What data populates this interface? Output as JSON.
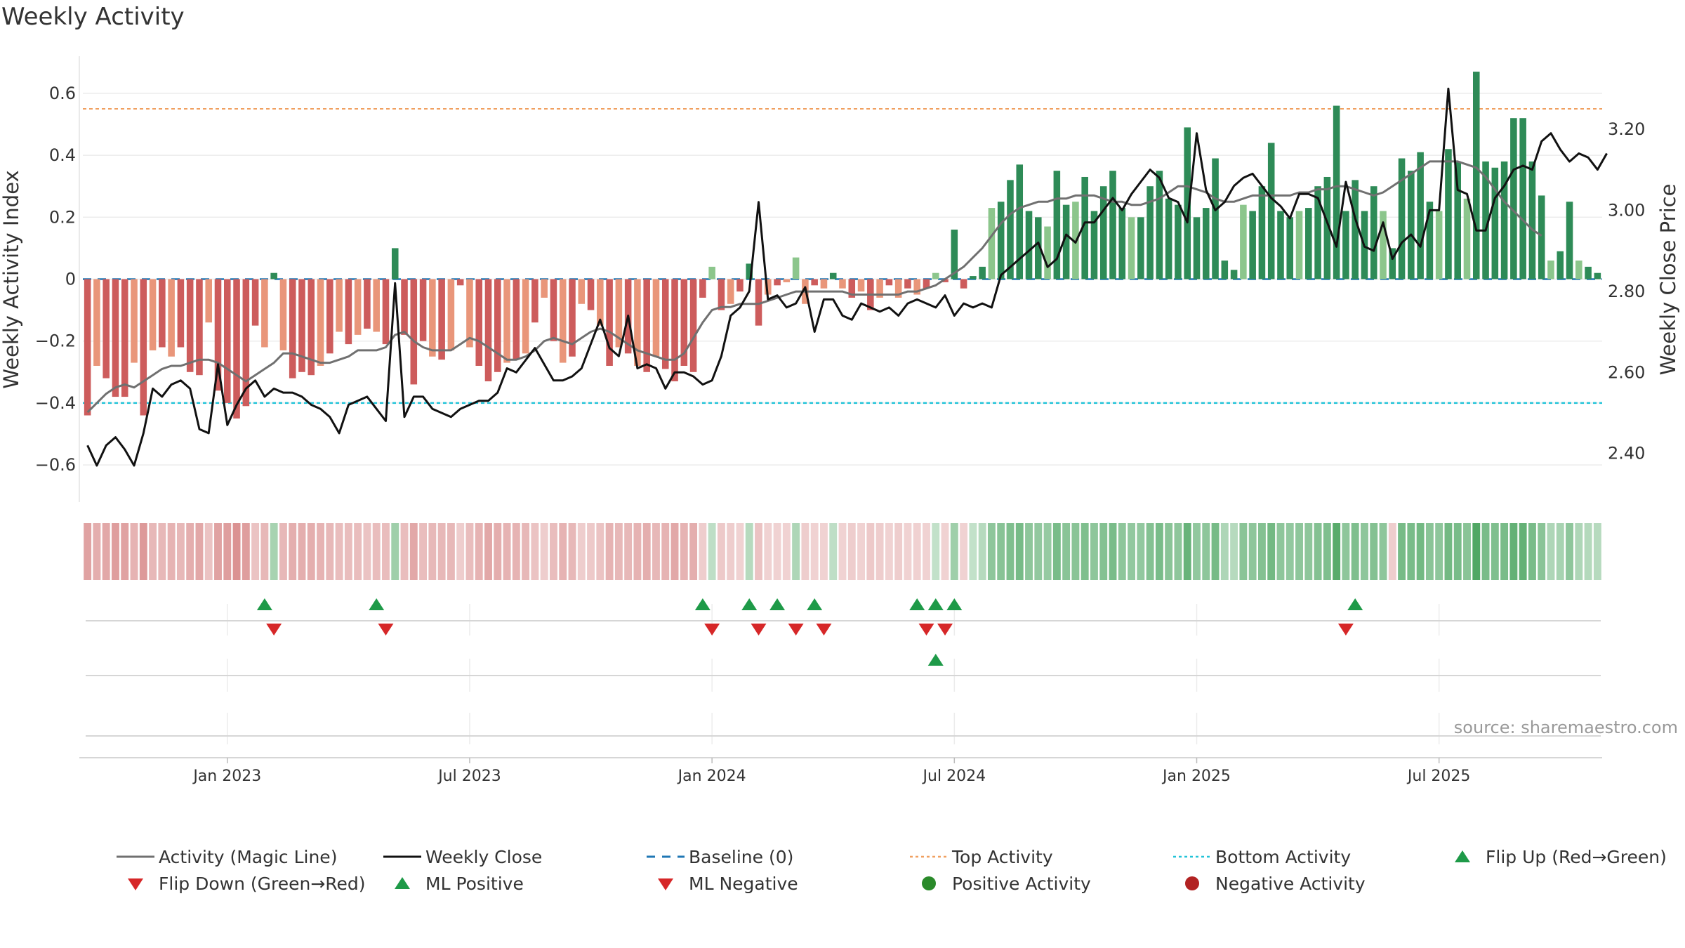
{
  "chart_data": {
    "type": "bar",
    "title": "Weekly Activity",
    "ylabel_left": "Weekly Activity Index",
    "ylabel_right": "Weekly Close Price",
    "source": "source: sharemaestro.com",
    "ylim_left": [
      -0.72,
      0.72
    ],
    "ylim_right": [
      2.28,
      3.38
    ],
    "yticks_left": [
      "0.6",
      "0.4",
      "0.2",
      "0",
      "−0.2",
      "−0.4",
      "−0.6"
    ],
    "yticks_left_values": [
      0.6,
      0.4,
      0.2,
      0,
      -0.2,
      -0.4,
      -0.6
    ],
    "yticks_right": [
      "3.20",
      "3.00",
      "2.80",
      "2.60",
      "2.40"
    ],
    "yticks_right_values": [
      3.2,
      3.0,
      2.8,
      2.6,
      2.4
    ],
    "xticks": [
      "Jan 2023",
      "Jul 2023",
      "Jan 2024",
      "Jul 2024",
      "Jan 2025",
      "Jul 2025"
    ],
    "xticks_weeks": [
      15,
      41,
      67,
      93,
      119,
      145
    ],
    "top_activity": 0.55,
    "bottom_activity": -0.4,
    "colors": {
      "strong_pos": "#2e8b57",
      "weak_pos": "#8cc68c",
      "strong_neg": "#cd5c5c",
      "weak_neg": "#e9967a",
      "magic_line": "#707070",
      "close": "#111111",
      "baseline": "#1f77b4",
      "top": "#f0a060",
      "bottom": "#22c3d8",
      "up_marker": "#1e9a48",
      "down_marker": "#d62728",
      "pos_dot": "#2a8a2a",
      "neg_dot": "#b22222"
    },
    "activity": [
      -0.44,
      -0.28,
      -0.32,
      -0.38,
      -0.38,
      -0.27,
      -0.44,
      -0.23,
      -0.22,
      -0.25,
      -0.22,
      -0.3,
      -0.31,
      -0.14,
      -0.36,
      -0.4,
      -0.45,
      -0.41,
      -0.15,
      -0.22,
      0.02,
      -0.23,
      -0.32,
      -0.3,
      -0.31,
      -0.28,
      -0.24,
      -0.17,
      -0.21,
      -0.18,
      -0.16,
      -0.17,
      -0.21,
      0.1,
      -0.18,
      -0.34,
      -0.2,
      -0.25,
      -0.26,
      -0.23,
      -0.02,
      -0.22,
      -0.28,
      -0.33,
      -0.3,
      -0.27,
      -0.26,
      -0.24,
      -0.14,
      -0.06,
      -0.2,
      -0.27,
      -0.25,
      -0.08,
      -0.1,
      -0.15,
      -0.28,
      -0.22,
      -0.24,
      -0.28,
      -0.3,
      -0.25,
      -0.29,
      -0.33,
      -0.28,
      -0.3,
      -0.06,
      0.04,
      -0.1,
      -0.08,
      -0.04,
      0.05,
      -0.15,
      -0.05,
      -0.02,
      -0.01,
      0.07,
      -0.08,
      -0.02,
      -0.03,
      0.02,
      -0.03,
      -0.06,
      -0.04,
      -0.1,
      -0.06,
      -0.02,
      -0.06,
      -0.03,
      -0.05,
      -0.03,
      0.02,
      -0.01,
      0.16,
      -0.03,
      0.01,
      0.04,
      0.23,
      0.25,
      0.32,
      0.37,
      0.22,
      0.2,
      0.17,
      0.35,
      0.24,
      0.25,
      0.33,
      0.22,
      0.3,
      0.35,
      0.23,
      0.2,
      0.2,
      0.3,
      0.35,
      0.26,
      0.24,
      0.49,
      0.2,
      0.23,
      0.39,
      0.06,
      0.03,
      0.24,
      0.22,
      0.3,
      0.44,
      0.22,
      0.2,
      0.22,
      0.23,
      0.3,
      0.33,
      0.56,
      0.22,
      0.32,
      0.22,
      0.3,
      0.22,
      0.1,
      0.39,
      0.35,
      0.41,
      0.25,
      0.22,
      0.42,
      0.38,
      0.26,
      0.67,
      0.38,
      0.36,
      0.38,
      0.52,
      0.52,
      0.38,
      0.27,
      0.06,
      0.09,
      0.25,
      0.06,
      0.04,
      0.02
    ],
    "magic_line": [
      -0.43,
      -0.4,
      -0.37,
      -0.35,
      -0.34,
      -0.35,
      -0.33,
      -0.31,
      -0.29,
      -0.28,
      -0.28,
      -0.27,
      -0.26,
      -0.26,
      -0.27,
      -0.29,
      -0.31,
      -0.33,
      -0.31,
      -0.29,
      -0.27,
      -0.24,
      -0.24,
      -0.25,
      -0.26,
      -0.27,
      -0.27,
      -0.26,
      -0.25,
      -0.23,
      -0.23,
      -0.23,
      -0.22,
      -0.18,
      -0.17,
      -0.2,
      -0.22,
      -0.23,
      -0.23,
      -0.23,
      -0.21,
      -0.19,
      -0.2,
      -0.22,
      -0.24,
      -0.26,
      -0.26,
      -0.25,
      -0.23,
      -0.2,
      -0.19,
      -0.2,
      -0.21,
      -0.19,
      -0.17,
      -0.16,
      -0.17,
      -0.19,
      -0.21,
      -0.23,
      -0.24,
      -0.25,
      -0.26,
      -0.26,
      -0.24,
      -0.19,
      -0.14,
      -0.1,
      -0.09,
      -0.09,
      -0.08,
      -0.08,
      -0.08,
      -0.07,
      -0.06,
      -0.05,
      -0.04,
      -0.04,
      -0.04,
      -0.04,
      -0.04,
      -0.04,
      -0.05,
      -0.05,
      -0.05,
      -0.05,
      -0.05,
      -0.05,
      -0.04,
      -0.04,
      -0.03,
      -0.02,
      0.0,
      0.02,
      0.04,
      0.07,
      0.1,
      0.14,
      0.18,
      0.21,
      0.23,
      0.24,
      0.25,
      0.25,
      0.26,
      0.26,
      0.27,
      0.27,
      0.27,
      0.26,
      0.25,
      0.25,
      0.24,
      0.24,
      0.25,
      0.26,
      0.28,
      0.3,
      0.3,
      0.29,
      0.28,
      0.26,
      0.25,
      0.25,
      0.26,
      0.27,
      0.27,
      0.27,
      0.27,
      0.27,
      0.28,
      0.28,
      0.29,
      0.29,
      0.3,
      0.3,
      0.29,
      0.28,
      0.27,
      0.28,
      0.3,
      0.32,
      0.34,
      0.36,
      0.38,
      0.38,
      0.38,
      0.38,
      0.37,
      0.36,
      0.33,
      0.29,
      0.25,
      0.22,
      0.19,
      0.16,
      0.14
    ],
    "close": [
      2.42,
      2.37,
      2.42,
      2.44,
      2.41,
      2.37,
      2.45,
      2.56,
      2.54,
      2.57,
      2.58,
      2.56,
      2.46,
      2.45,
      2.62,
      2.47,
      2.52,
      2.56,
      2.58,
      2.54,
      2.56,
      2.55,
      2.55,
      2.54,
      2.52,
      2.51,
      2.49,
      2.45,
      2.52,
      2.53,
      2.54,
      2.51,
      2.48,
      2.82,
      2.49,
      2.54,
      2.54,
      2.51,
      2.5,
      2.49,
      2.51,
      2.52,
      2.53,
      2.53,
      2.55,
      2.61,
      2.6,
      2.63,
      2.66,
      2.62,
      2.58,
      2.58,
      2.59,
      2.61,
      2.67,
      2.73,
      2.66,
      2.64,
      2.74,
      2.61,
      2.62,
      2.61,
      2.56,
      2.6,
      2.6,
      2.59,
      2.57,
      2.58,
      2.64,
      2.74,
      2.76,
      2.8,
      3.02,
      2.78,
      2.79,
      2.76,
      2.77,
      2.81,
      2.7,
      2.78,
      2.78,
      2.74,
      2.73,
      2.77,
      2.76,
      2.75,
      2.76,
      2.74,
      2.77,
      2.78,
      2.77,
      2.76,
      2.79,
      2.74,
      2.77,
      2.76,
      2.77,
      2.76,
      2.84,
      2.86,
      2.88,
      2.9,
      2.92,
      2.86,
      2.88,
      2.94,
      2.92,
      2.97,
      2.97,
      3.0,
      3.03,
      3.0,
      3.04,
      3.07,
      3.1,
      3.08,
      3.03,
      3.02,
      2.97,
      3.19,
      3.05,
      3.0,
      3.02,
      3.06,
      3.08,
      3.09,
      3.06,
      3.03,
      3.01,
      2.98,
      3.04,
      3.04,
      3.03,
      2.97,
      2.91,
      3.07,
      2.98,
      2.91,
      2.9,
      2.97,
      2.88,
      2.92,
      2.94,
      2.91,
      3.0,
      3.0,
      3.3,
      3.05,
      3.04,
      2.95,
      2.95,
      3.03,
      3.06,
      3.1,
      3.11,
      3.1,
      3.17,
      3.19,
      3.15,
      3.12,
      3.14,
      3.13,
      3.1,
      3.14
    ],
    "intensity_strip": [
      0.55,
      0.45,
      0.5,
      0.6,
      0.55,
      0.4,
      0.65,
      0.35,
      0.35,
      0.4,
      0.35,
      0.45,
      0.5,
      0.25,
      0.55,
      0.6,
      0.7,
      0.6,
      0.25,
      0.35,
      -0.3,
      0.35,
      0.45,
      0.45,
      0.45,
      0.4,
      0.35,
      0.3,
      0.3,
      0.3,
      0.25,
      0.3,
      0.3,
      -0.35,
      0.3,
      0.5,
      0.3,
      0.35,
      0.35,
      0.35,
      0.15,
      0.3,
      0.4,
      0.5,
      0.45,
      0.4,
      0.4,
      0.35,
      0.25,
      0.15,
      0.3,
      0.4,
      0.35,
      0.15,
      0.2,
      0.25,
      0.4,
      0.35,
      0.35,
      0.4,
      0.45,
      0.35,
      0.4,
      0.5,
      0.4,
      0.45,
      0.15,
      -0.15,
      0.2,
      0.15,
      0.1,
      -0.2,
      0.25,
      0.1,
      0.1,
      0.1,
      -0.25,
      0.15,
      0.1,
      0.1,
      -0.15,
      0.1,
      0.15,
      0.1,
      0.2,
      0.15,
      0.1,
      0.15,
      0.1,
      0.12,
      0.1,
      -0.12,
      0.1,
      -0.35,
      0.1,
      -0.12,
      -0.2,
      -0.45,
      -0.5,
      -0.55,
      -0.6,
      -0.45,
      -0.42,
      -0.4,
      -0.58,
      -0.48,
      -0.48,
      -0.55,
      -0.45,
      -0.52,
      -0.58,
      -0.45,
      -0.42,
      -0.42,
      -0.52,
      -0.58,
      -0.48,
      -0.45,
      -0.7,
      -0.42,
      -0.45,
      -0.6,
      -0.25,
      -0.2,
      -0.48,
      -0.45,
      -0.52,
      -0.62,
      -0.45,
      -0.42,
      -0.45,
      -0.45,
      -0.52,
      -0.55,
      -0.8,
      -0.45,
      -0.55,
      -0.45,
      -0.52,
      -0.45,
      0.15,
      -0.6,
      -0.58,
      -0.62,
      -0.48,
      -0.45,
      -0.62,
      -0.58,
      -0.48,
      -0.85,
      -0.58,
      -0.55,
      -0.58,
      -0.72,
      -0.72,
      -0.58,
      -0.48,
      -0.25,
      -0.3,
      -0.45,
      -0.25,
      -0.22,
      -0.2
    ],
    "flip_up_weeks": [
      19,
      31,
      66,
      71,
      74,
      78,
      89,
      91,
      93,
      136
    ],
    "flip_down_weeks": [
      20,
      32,
      67,
      72,
      76,
      79,
      90,
      92,
      135
    ],
    "ml_positive_weeks": [
      91
    ],
    "ml_negative_weeks": [],
    "legend": [
      {
        "label": "Activity (Magic Line)",
        "symbol": "line-gray"
      },
      {
        "label": "Weekly Close",
        "symbol": "line-black"
      },
      {
        "label": "Baseline (0)",
        "symbol": "dash-blue"
      },
      {
        "label": "Top Activity",
        "symbol": "dot-orange"
      },
      {
        "label": "Bottom Activity",
        "symbol": "dot-cyan"
      },
      {
        "label": "Flip Up (Red→Green)",
        "symbol": "tri-up-green"
      },
      {
        "label": "Flip Down (Green→Red)",
        "symbol": "tri-down-red"
      },
      {
        "label": "ML Positive",
        "symbol": "tri-up-green"
      },
      {
        "label": "ML Negative",
        "symbol": "tri-down-red"
      },
      {
        "label": "Positive Activity",
        "symbol": "circle-green"
      },
      {
        "label": "Negative Activity",
        "symbol": "circle-darkred"
      }
    ]
  }
}
